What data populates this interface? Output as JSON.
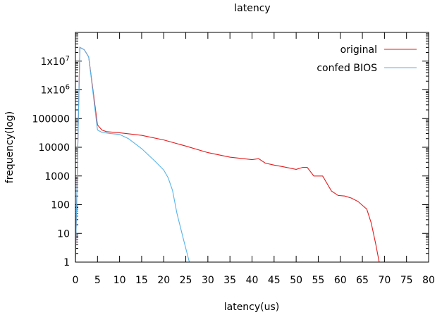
{
  "chart_data": {
    "type": "line",
    "title": "latency",
    "xlabel": "latency(us)",
    "ylabel": "frequency(log)",
    "xlim": [
      0,
      80
    ],
    "ylim": [
      1,
      100000000
    ],
    "yscale": "log",
    "x_ticks": [
      "0",
      "5",
      "10",
      "15",
      "20",
      "25",
      "30",
      "35",
      "40",
      "45",
      "50",
      "55",
      "60",
      "65",
      "70",
      "75",
      "80"
    ],
    "y_ticks": [
      {
        "value": 1,
        "label": "1"
      },
      {
        "value": 10,
        "label": "10"
      },
      {
        "value": 100,
        "label": "100"
      },
      {
        "value": 1000,
        "label": "1000"
      },
      {
        "value": 10000,
        "label": "10000"
      },
      {
        "value": 100000,
        "label": "100000"
      },
      {
        "value": 1000000,
        "base": "1x10",
        "exp": "6"
      },
      {
        "value": 10000000,
        "base": "1x10",
        "exp": "7"
      }
    ],
    "legend_position": "top-right",
    "grid": false,
    "series": [
      {
        "name": "original",
        "color": "#e41a1c",
        "x": [
          0,
          1,
          2,
          3,
          5,
          6,
          7,
          10,
          15,
          20,
          25,
          30,
          35,
          40,
          41.5,
          43,
          45,
          47,
          50,
          51.5,
          52.5,
          54,
          56,
          58,
          59.5,
          61,
          62.5,
          64,
          66,
          67,
          68,
          68.8
        ],
        "y": [
          1,
          30000000,
          25000000,
          14000000,
          60000.0,
          40000,
          35000,
          32000,
          26000,
          18000,
          11000,
          6500,
          4500,
          3700,
          4000,
          2800,
          2400,
          2100,
          1700,
          2000,
          2000,
          1000,
          1000,
          300,
          210,
          200,
          170,
          130,
          70,
          23,
          4.5,
          1
        ]
      },
      {
        "name": "confed BIOS",
        "color": "#56b4e9",
        "x": [
          0,
          1,
          2,
          3,
          5,
          6,
          8,
          10,
          12,
          15,
          18,
          20,
          21,
          22,
          23,
          24.5,
          25.8
        ],
        "y": [
          1,
          30000000,
          25000000,
          14000000,
          40000,
          33000,
          30000,
          28000,
          20000,
          9000,
          3300,
          1600,
          870,
          310,
          50,
          6,
          1
        ]
      }
    ]
  }
}
